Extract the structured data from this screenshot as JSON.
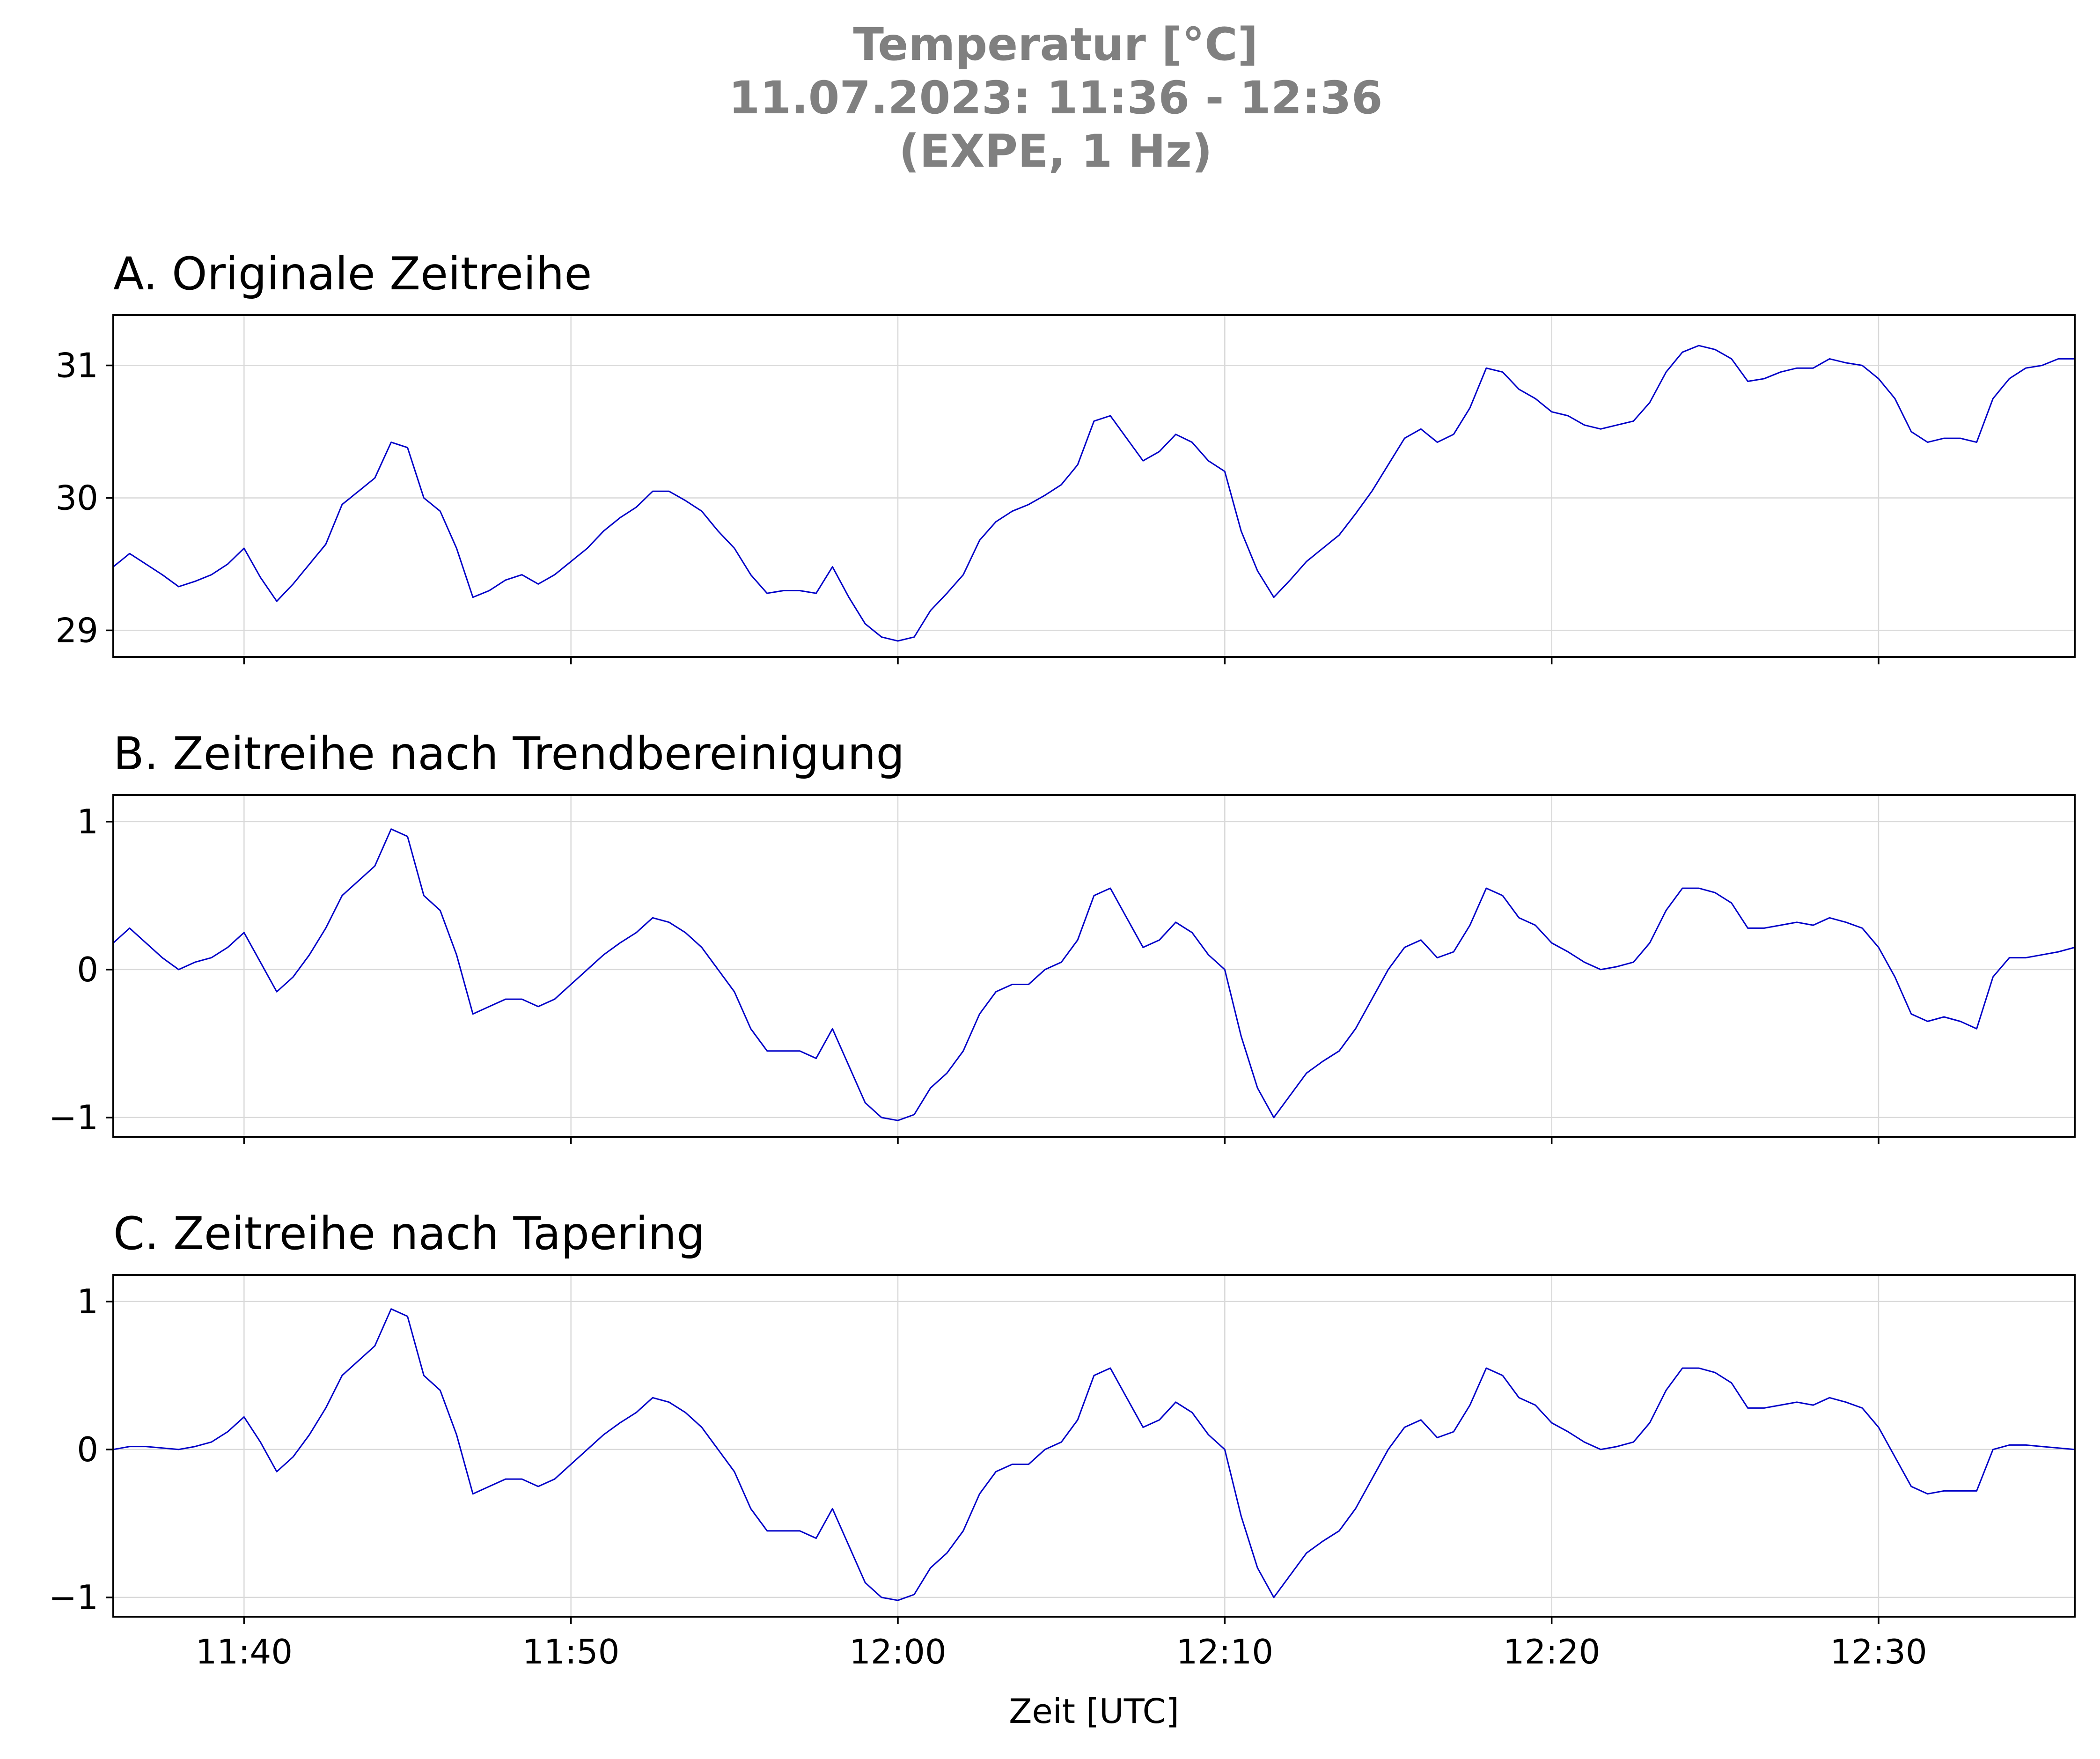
{
  "figure": {
    "title_lines": [
      "Temperatur [°C]",
      "11.07.2023:  11:36 -  12:36",
      "(EXPE, 1 Hz)"
    ],
    "title_color": "#808080",
    "line_color": "#0000c8",
    "xlabel": "Zeit [UTC]"
  },
  "chart_data": [
    {
      "type": "line",
      "title": "A. Originale Zeitreihe",
      "xlim": [
        "11:36",
        "12:36"
      ],
      "ylim": [
        28.8,
        31.38
      ],
      "xticks": [
        "11:40",
        "11:50",
        "12:00",
        "12:10",
        "12:20",
        "12:30"
      ],
      "yticks": [
        29,
        30,
        31
      ],
      "ytick_labels": [
        "29",
        "30",
        "31"
      ],
      "grid": true,
      "series": [
        {
          "x": [
            "11:36:00",
            "11:36:30",
            "11:37:00",
            "11:37:30",
            "11:38:00",
            "11:38:30",
            "11:39:00",
            "11:39:30",
            "11:40:00",
            "11:40:30",
            "11:41:00",
            "11:41:30",
            "11:42:00",
            "11:42:30",
            "11:43:00",
            "11:43:30",
            "11:44:00",
            "11:44:30",
            "11:45:00",
            "11:45:30",
            "11:46:00",
            "11:46:30",
            "11:47:00",
            "11:47:30",
            "11:48:00",
            "11:48:30",
            "11:49:00",
            "11:49:30",
            "11:50:00",
            "11:50:30",
            "11:51:00",
            "11:51:30",
            "11:52:00",
            "11:52:30",
            "11:53:00",
            "11:53:30",
            "11:54:00",
            "11:54:30",
            "11:55:00",
            "11:55:30",
            "11:56:00",
            "11:56:30",
            "11:57:00",
            "11:57:30",
            "11:58:00",
            "11:58:30",
            "11:59:00",
            "11:59:30",
            "12:00:00",
            "12:00:30",
            "12:01:00",
            "12:01:30",
            "12:02:00",
            "12:02:30",
            "12:03:00",
            "12:03:30",
            "12:04:00",
            "12:04:30",
            "12:05:00",
            "12:05:30",
            "12:06:00",
            "12:06:30",
            "12:07:00",
            "12:07:30",
            "12:08:00",
            "12:08:30",
            "12:09:00",
            "12:09:30",
            "12:10:00",
            "12:10:30",
            "12:11:00",
            "12:11:30",
            "12:12:00",
            "12:12:30",
            "12:13:00",
            "12:13:30",
            "12:14:00",
            "12:14:30",
            "12:15:00",
            "12:15:30",
            "12:16:00",
            "12:16:30",
            "12:17:00",
            "12:17:30",
            "12:18:00",
            "12:18:30",
            "12:19:00",
            "12:19:30",
            "12:20:00",
            "12:20:30",
            "12:21:00",
            "12:21:30",
            "12:22:00",
            "12:22:30",
            "12:23:00",
            "12:23:30",
            "12:24:00",
            "12:24:30",
            "12:25:00",
            "12:25:30",
            "12:26:00",
            "12:26:30",
            "12:27:00",
            "12:27:30",
            "12:28:00",
            "12:28:30",
            "12:29:00",
            "12:29:30",
            "12:30:00",
            "12:30:30",
            "12:31:00",
            "12:31:30",
            "12:32:00",
            "12:32:30",
            "12:33:00",
            "12:33:30",
            "12:34:00",
            "12:34:30",
            "12:35:00",
            "12:35:30",
            "12:36:00"
          ],
          "y": [
            29.48,
            29.58,
            29.5,
            29.42,
            29.33,
            29.37,
            29.42,
            29.5,
            29.62,
            29.4,
            29.22,
            29.35,
            29.5,
            29.65,
            29.95,
            30.05,
            30.15,
            30.42,
            30.38,
            30.0,
            29.9,
            29.62,
            29.25,
            29.3,
            29.38,
            29.42,
            29.35,
            29.42,
            29.52,
            29.62,
            29.75,
            29.85,
            29.93,
            30.05,
            30.05,
            29.98,
            29.9,
            29.75,
            29.62,
            29.42,
            29.28,
            29.3,
            29.3,
            29.28,
            29.48,
            29.25,
            29.05,
            28.95,
            28.92,
            28.95,
            29.15,
            29.28,
            29.42,
            29.68,
            29.82,
            29.9,
            29.95,
            30.02,
            30.1,
            30.25,
            30.58,
            30.62,
            30.45,
            30.28,
            30.35,
            30.48,
            30.42,
            30.28,
            30.2,
            29.75,
            29.45,
            29.25,
            29.38,
            29.52,
            29.62,
            29.72,
            29.88,
            30.05,
            30.25,
            30.45,
            30.52,
            30.42,
            30.48,
            30.68,
            30.98,
            30.95,
            30.82,
            30.75,
            30.65,
            30.62,
            30.55,
            30.52,
            30.55,
            30.58,
            30.72,
            30.95,
            31.1,
            31.15,
            31.12,
            31.05,
            30.88,
            30.9,
            30.95,
            30.98,
            30.98,
            31.05,
            31.02,
            31.0,
            30.9,
            30.75,
            30.5,
            30.42,
            30.45,
            30.45,
            30.42,
            30.75,
            30.9,
            30.98,
            31.0,
            31.05,
            31.05
          ]
        }
      ]
    },
    {
      "type": "line",
      "title": "B. Zeitreihe nach Trendbereinigung",
      "xlim": [
        "11:36",
        "12:36"
      ],
      "ylim": [
        -1.13,
        1.18
      ],
      "xticks": [
        "11:40",
        "11:50",
        "12:00",
        "12:10",
        "12:20",
        "12:30"
      ],
      "yticks": [
        -1,
        0,
        1
      ],
      "ytick_labels": [
        "−1",
        "0",
        "1"
      ],
      "grid": true,
      "series": [
        {
          "x": [
            "11:36:00",
            "11:36:30",
            "11:37:00",
            "11:37:30",
            "11:38:00",
            "11:38:30",
            "11:39:00",
            "11:39:30",
            "11:40:00",
            "11:40:30",
            "11:41:00",
            "11:41:30",
            "11:42:00",
            "11:42:30",
            "11:43:00",
            "11:43:30",
            "11:44:00",
            "11:44:30",
            "11:45:00",
            "11:45:30",
            "11:46:00",
            "11:46:30",
            "11:47:00",
            "11:47:30",
            "11:48:00",
            "11:48:30",
            "11:49:00",
            "11:49:30",
            "11:50:00",
            "11:50:30",
            "11:51:00",
            "11:51:30",
            "11:52:00",
            "11:52:30",
            "11:53:00",
            "11:53:30",
            "11:54:00",
            "11:54:30",
            "11:55:00",
            "11:55:30",
            "11:56:00",
            "11:56:30",
            "11:57:00",
            "11:57:30",
            "11:58:00",
            "11:58:30",
            "11:59:00",
            "11:59:30",
            "12:00:00",
            "12:00:30",
            "12:01:00",
            "12:01:30",
            "12:02:00",
            "12:02:30",
            "12:03:00",
            "12:03:30",
            "12:04:00",
            "12:04:30",
            "12:05:00",
            "12:05:30",
            "12:06:00",
            "12:06:30",
            "12:07:00",
            "12:07:30",
            "12:08:00",
            "12:08:30",
            "12:09:00",
            "12:09:30",
            "12:10:00",
            "12:10:30",
            "12:11:00",
            "12:11:30",
            "12:12:00",
            "12:12:30",
            "12:13:00",
            "12:13:30",
            "12:14:00",
            "12:14:30",
            "12:15:00",
            "12:15:30",
            "12:16:00",
            "12:16:30",
            "12:17:00",
            "12:17:30",
            "12:18:00",
            "12:18:30",
            "12:19:00",
            "12:19:30",
            "12:20:00",
            "12:20:30",
            "12:21:00",
            "12:21:30",
            "12:22:00",
            "12:22:30",
            "12:23:00",
            "12:23:30",
            "12:24:00",
            "12:24:30",
            "12:25:00",
            "12:25:30",
            "12:26:00",
            "12:26:30",
            "12:27:00",
            "12:27:30",
            "12:28:00",
            "12:28:30",
            "12:29:00",
            "12:29:30",
            "12:30:00",
            "12:30:30",
            "12:31:00",
            "12:31:30",
            "12:32:00",
            "12:32:30",
            "12:33:00",
            "12:33:30",
            "12:34:00",
            "12:34:30",
            "12:35:00",
            "12:35:30",
            "12:36:00"
          ],
          "y": [
            0.18,
            0.28,
            0.18,
            0.08,
            0.0,
            0.05,
            0.08,
            0.15,
            0.25,
            0.05,
            -0.15,
            -0.05,
            0.1,
            0.28,
            0.5,
            0.6,
            0.7,
            0.95,
            0.9,
            0.5,
            0.4,
            0.1,
            -0.3,
            -0.25,
            -0.2,
            -0.2,
            -0.25,
            -0.2,
            -0.1,
            0.0,
            0.1,
            0.18,
            0.25,
            0.35,
            0.32,
            0.25,
            0.15,
            0.0,
            -0.15,
            -0.4,
            -0.55,
            -0.55,
            -0.55,
            -0.6,
            -0.4,
            -0.65,
            -0.9,
            -1.0,
            -1.02,
            -0.98,
            -0.8,
            -0.7,
            -0.55,
            -0.3,
            -0.15,
            -0.1,
            -0.1,
            0.0,
            0.05,
            0.2,
            0.5,
            0.55,
            0.35,
            0.15,
            0.2,
            0.32,
            0.25,
            0.1,
            0.0,
            -0.45,
            -0.8,
            -1.0,
            -0.85,
            -0.7,
            -0.62,
            -0.55,
            -0.4,
            -0.2,
            0.0,
            0.15,
            0.2,
            0.08,
            0.12,
            0.3,
            0.55,
            0.5,
            0.35,
            0.3,
            0.18,
            0.12,
            0.05,
            0.0,
            0.02,
            0.05,
            0.18,
            0.4,
            0.55,
            0.55,
            0.52,
            0.45,
            0.28,
            0.28,
            0.3,
            0.32,
            0.3,
            0.35,
            0.32,
            0.28,
            0.15,
            -0.05,
            -0.3,
            -0.35,
            -0.32,
            -0.35,
            -0.4,
            -0.05,
            0.08,
            0.08,
            0.1,
            0.12,
            0.15
          ]
        }
      ]
    },
    {
      "type": "line",
      "title": "C. Zeitreihe nach Tapering",
      "xlim": [
        "11:36",
        "12:36"
      ],
      "ylim": [
        -1.13,
        1.18
      ],
      "xticks": [
        "11:40",
        "11:50",
        "12:00",
        "12:10",
        "12:20",
        "12:30"
      ],
      "yticks": [
        -1,
        0,
        1
      ],
      "ytick_labels": [
        "−1",
        "0",
        "1"
      ],
      "grid": true,
      "series": [
        {
          "x": [
            "11:36:00",
            "11:36:30",
            "11:37:00",
            "11:37:30",
            "11:38:00",
            "11:38:30",
            "11:39:00",
            "11:39:30",
            "11:40:00",
            "11:40:30",
            "11:41:00",
            "11:41:30",
            "11:42:00",
            "11:42:30",
            "11:43:00",
            "11:43:30",
            "11:44:00",
            "11:44:30",
            "11:45:00",
            "11:45:30",
            "11:46:00",
            "11:46:30",
            "11:47:00",
            "11:47:30",
            "11:48:00",
            "11:48:30",
            "11:49:00",
            "11:49:30",
            "11:50:00",
            "11:50:30",
            "11:51:00",
            "11:51:30",
            "11:52:00",
            "11:52:30",
            "11:53:00",
            "11:53:30",
            "11:54:00",
            "11:54:30",
            "11:55:00",
            "11:55:30",
            "11:56:00",
            "11:56:30",
            "11:57:00",
            "11:57:30",
            "11:58:00",
            "11:58:30",
            "11:59:00",
            "11:59:30",
            "12:00:00",
            "12:00:30",
            "12:01:00",
            "12:01:30",
            "12:02:00",
            "12:02:30",
            "12:03:00",
            "12:03:30",
            "12:04:00",
            "12:04:30",
            "12:05:00",
            "12:05:30",
            "12:06:00",
            "12:06:30",
            "12:07:00",
            "12:07:30",
            "12:08:00",
            "12:08:30",
            "12:09:00",
            "12:09:30",
            "12:10:00",
            "12:10:30",
            "12:11:00",
            "12:11:30",
            "12:12:00",
            "12:12:30",
            "12:13:00",
            "12:13:30",
            "12:14:00",
            "12:14:30",
            "12:15:00",
            "12:15:30",
            "12:16:00",
            "12:16:30",
            "12:17:00",
            "12:17:30",
            "12:18:00",
            "12:18:30",
            "12:19:00",
            "12:19:30",
            "12:20:00",
            "12:20:30",
            "12:21:00",
            "12:21:30",
            "12:22:00",
            "12:22:30",
            "12:23:00",
            "12:23:30",
            "12:24:00",
            "12:24:30",
            "12:25:00",
            "12:25:30",
            "12:26:00",
            "12:26:30",
            "12:27:00",
            "12:27:30",
            "12:28:00",
            "12:28:30",
            "12:29:00",
            "12:29:30",
            "12:30:00",
            "12:30:30",
            "12:31:00",
            "12:31:30",
            "12:32:00",
            "12:32:30",
            "12:33:00",
            "12:33:30",
            "12:34:00",
            "12:34:30",
            "12:35:00",
            "12:35:30",
            "12:36:00"
          ],
          "y": [
            0.0,
            0.02,
            0.02,
            0.01,
            0.0,
            0.02,
            0.05,
            0.12,
            0.22,
            0.05,
            -0.15,
            -0.05,
            0.1,
            0.28,
            0.5,
            0.6,
            0.7,
            0.95,
            0.9,
            0.5,
            0.4,
            0.1,
            -0.3,
            -0.25,
            -0.2,
            -0.2,
            -0.25,
            -0.2,
            -0.1,
            0.0,
            0.1,
            0.18,
            0.25,
            0.35,
            0.32,
            0.25,
            0.15,
            0.0,
            -0.15,
            -0.4,
            -0.55,
            -0.55,
            -0.55,
            -0.6,
            -0.4,
            -0.65,
            -0.9,
            -1.0,
            -1.02,
            -0.98,
            -0.8,
            -0.7,
            -0.55,
            -0.3,
            -0.15,
            -0.1,
            -0.1,
            0.0,
            0.05,
            0.2,
            0.5,
            0.55,
            0.35,
            0.15,
            0.2,
            0.32,
            0.25,
            0.1,
            0.0,
            -0.45,
            -0.8,
            -1.0,
            -0.85,
            -0.7,
            -0.62,
            -0.55,
            -0.4,
            -0.2,
            0.0,
            0.15,
            0.2,
            0.08,
            0.12,
            0.3,
            0.55,
            0.5,
            0.35,
            0.3,
            0.18,
            0.12,
            0.05,
            0.0,
            0.02,
            0.05,
            0.18,
            0.4,
            0.55,
            0.55,
            0.52,
            0.45,
            0.28,
            0.28,
            0.3,
            0.32,
            0.3,
            0.35,
            0.32,
            0.28,
            0.15,
            -0.05,
            -0.25,
            -0.3,
            -0.28,
            -0.28,
            -0.28,
            0.0,
            0.03,
            0.03,
            0.02,
            0.01,
            0.0
          ]
        }
      ]
    }
  ]
}
